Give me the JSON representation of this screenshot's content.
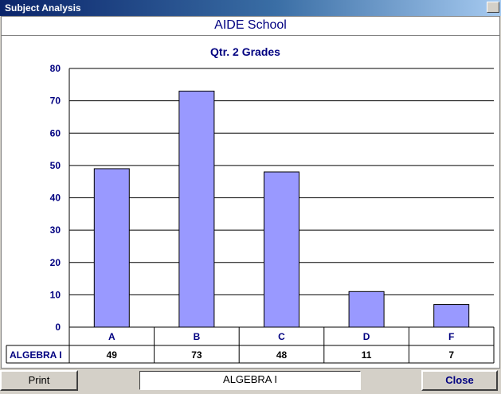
{
  "window": {
    "title": "Subject Analysis"
  },
  "header": {
    "school": "AIDE School"
  },
  "chart_data": {
    "type": "bar",
    "title": "Qtr. 2 Grades",
    "categories": [
      "A",
      "B",
      "C",
      "D",
      "F"
    ],
    "series": [
      {
        "name": "ALGEBRA I",
        "values": [
          49,
          73,
          48,
          11,
          7
        ]
      }
    ],
    "ylim": [
      0,
      80
    ],
    "yticks": [
      0,
      10,
      20,
      30,
      40,
      50,
      60,
      70,
      80
    ],
    "grid": true,
    "bar_color": "#9999ff"
  },
  "footer": {
    "print_label": "Print",
    "subject": "ALGEBRA I",
    "close_label": "Close"
  }
}
